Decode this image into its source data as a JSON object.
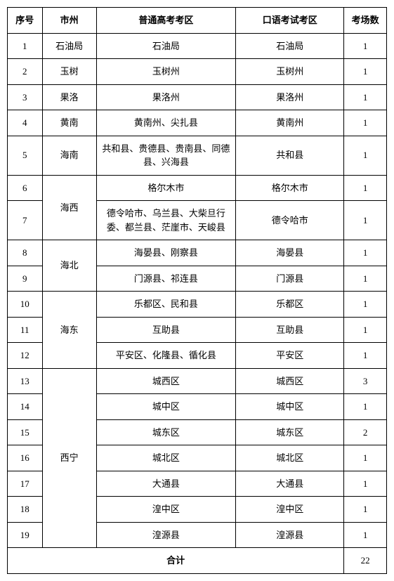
{
  "headers": {
    "seq": "序号",
    "city": "市州",
    "exam_area": "普通高考考区",
    "oral_area": "口语考试考区",
    "count": "考场数"
  },
  "rows": [
    {
      "seq": "1",
      "city": "石油局",
      "exam": "石油局",
      "oral": "石油局",
      "count": "1"
    },
    {
      "seq": "2",
      "city": "玉树",
      "exam": "玉树州",
      "oral": "玉树州",
      "count": "1"
    },
    {
      "seq": "3",
      "city": "果洛",
      "exam": "果洛州",
      "oral": "果洛州",
      "count": "1"
    },
    {
      "seq": "4",
      "city": "黄南",
      "exam": "黄南州、尖扎县",
      "oral": "黄南州",
      "count": "1"
    },
    {
      "seq": "5",
      "city": "海南",
      "exam": "共和县、贵德县、贵南县、同德县、兴海县",
      "oral": "共和县",
      "count": "1"
    },
    {
      "seq": "6",
      "city": "海西",
      "city_rowspan": 2,
      "exam": "格尔木市",
      "oral": "格尔木市",
      "count": "1"
    },
    {
      "seq": "7",
      "exam": "德令哈市、乌兰县、大柴旦行委、都兰县、茫崖市、天峻县",
      "oral": "德令哈市",
      "count": "1"
    },
    {
      "seq": "8",
      "city": "海北",
      "city_rowspan": 2,
      "exam": "海晏县、刚察县",
      "oral": "海晏县",
      "count": "1"
    },
    {
      "seq": "9",
      "exam": "门源县、祁连县",
      "oral": "门源县",
      "count": "1"
    },
    {
      "seq": "10",
      "city": "海东",
      "city_rowspan": 3,
      "exam": "乐都区、民和县",
      "oral": "乐都区",
      "count": "1"
    },
    {
      "seq": "11",
      "exam": "互助县",
      "oral": "互助县",
      "count": "1"
    },
    {
      "seq": "12",
      "exam": "平安区、化隆县、循化县",
      "oral": "平安区",
      "count": "1"
    },
    {
      "seq": "13",
      "city": "西宁",
      "city_rowspan": 7,
      "exam": "城西区",
      "oral": "城西区",
      "count": "3"
    },
    {
      "seq": "14",
      "exam": "城中区",
      "oral": "城中区",
      "count": "1"
    },
    {
      "seq": "15",
      "exam": "城东区",
      "oral": "城东区",
      "count": "2"
    },
    {
      "seq": "16",
      "exam": "城北区",
      "oral": "城北区",
      "count": "1"
    },
    {
      "seq": "17",
      "exam": "大通县",
      "oral": "大通县",
      "count": "1"
    },
    {
      "seq": "18",
      "exam": "湟中区",
      "oral": "湟中区",
      "count": "1"
    },
    {
      "seq": "19",
      "exam": "湟源县",
      "oral": "湟源县",
      "count": "1"
    }
  ],
  "total": {
    "label": "合计",
    "value": "22"
  },
  "style": {
    "border_color": "#000000",
    "background": "#ffffff",
    "font_size": 13,
    "header_weight": "bold"
  }
}
